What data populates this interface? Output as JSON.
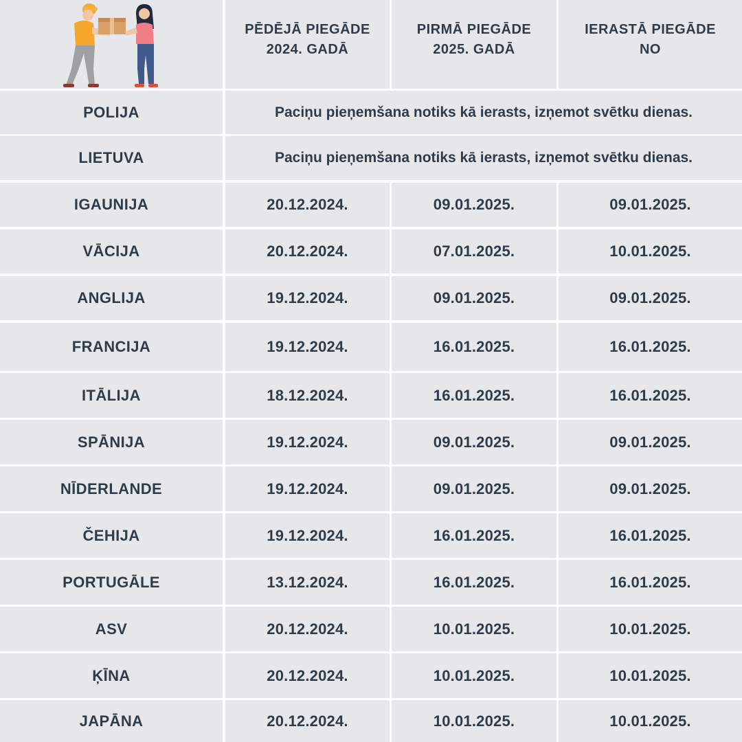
{
  "header": {
    "col1": [
      "PĒDĒJĀ PIEGĀDE",
      "2024. GADĀ"
    ],
    "col2": [
      "PIRMĀ PIEGĀDE",
      "2025. GADĀ"
    ],
    "col3": [
      "IERASTĀ PIEGĀDE",
      "NO"
    ]
  },
  "note_rows": [
    {
      "country": "POLIJA",
      "note": "Paciņu pieņemšana notiks kā ierasts, izņemot svētku dienas."
    },
    {
      "country": "LIETUVA",
      "note": "Paciņu pieņemšana notiks kā ierasts, izņemot svētku dienas."
    }
  ],
  "rows": [
    {
      "country": "IGAUNIJA",
      "last": "20.12.2024.",
      "first": "09.01.2025.",
      "usual": "09.01.2025."
    },
    {
      "country": "VĀCIJA",
      "last": "20.12.2024.",
      "first": "07.01.2025.",
      "usual": "10.01.2025."
    },
    {
      "country": "ANGLIJA",
      "last": "19.12.2024.",
      "first": "09.01.2025.",
      "usual": "09.01.2025."
    },
    {
      "country": "FRANCIJA",
      "last": "19.12.2024.",
      "first": "16.01.2025.",
      "usual": "16.01.2025."
    },
    {
      "country": "ITĀLIJA",
      "last": "18.12.2024.",
      "first": "16.01.2025.",
      "usual": "16.01.2025."
    },
    {
      "country": "SPĀNIJA",
      "last": "19.12.2024.",
      "first": "09.01.2025.",
      "usual": "09.01.2025."
    },
    {
      "country": "NĪDERLANDE",
      "last": "19.12.2024.",
      "first": "09.01.2025.",
      "usual": "09.01.2025."
    },
    {
      "country": "ČEHIJA",
      "last": "19.12.2024.",
      "first": "16.01.2025.",
      "usual": "16.01.2025."
    },
    {
      "country": "PORTUGĀLE",
      "last": "13.12.2024.",
      "first": "16.01.2025.",
      "usual": "16.01.2025."
    },
    {
      "country": "ASV",
      "last": "20.12.2024.",
      "first": "10.01.2025.",
      "usual": "10.01.2025."
    },
    {
      "country": "ĶĪNA",
      "last": "20.12.2024.",
      "first": "10.01.2025.",
      "usual": "10.01.2025."
    },
    {
      "country": "JAPĀNA",
      "last": "20.12.2024.",
      "first": "10.01.2025.",
      "usual": "10.01.2025."
    }
  ],
  "colors": {
    "cell_bg": "#e6e7eb",
    "text": "#2f3c48",
    "grid": "#ffffff"
  },
  "illustration": "delivery-handover-illustration"
}
